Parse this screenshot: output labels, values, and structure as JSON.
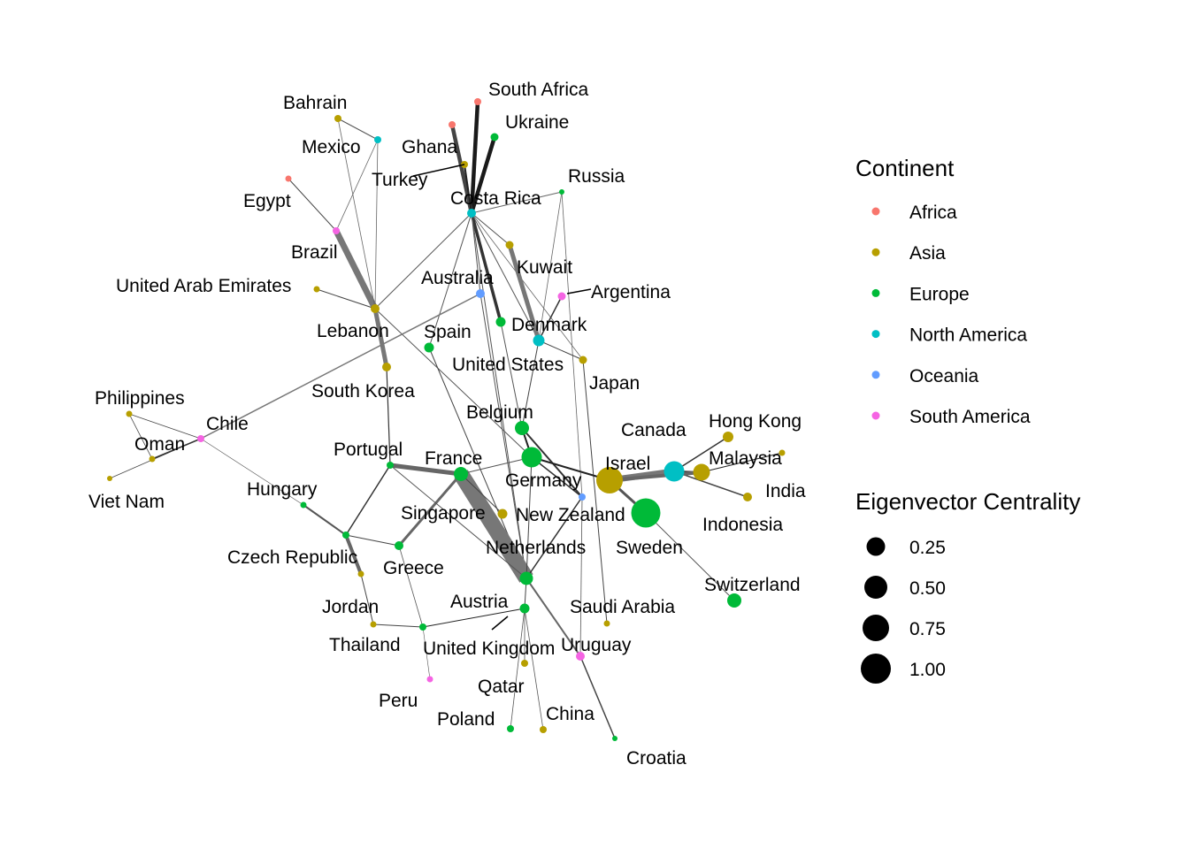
{
  "continents": [
    {
      "key": "africa",
      "label": "Africa",
      "color": "#F8766D"
    },
    {
      "key": "asia",
      "label": "Asia",
      "color": "#B79F00"
    },
    {
      "key": "europe",
      "label": "Europe",
      "color": "#00BA38"
    },
    {
      "key": "north_america",
      "label": "North America",
      "color": "#00BFC4"
    },
    {
      "key": "oceania",
      "label": "Oceania",
      "color": "#619CFF"
    },
    {
      "key": "south_america",
      "label": "South America",
      "color": "#F564E3"
    }
  ],
  "legend": {
    "continent_title": "Continent",
    "size_title": "Eigenvector Centrality",
    "size_values": [
      "0.25",
      "0.50",
      "0.75",
      "1.00"
    ]
  },
  "nodes": [
    {
      "id": "South Africa",
      "label": "South Africa",
      "continent": "africa"
    },
    {
      "id": "Ghana",
      "label": "Ghana",
      "continent": "africa"
    },
    {
      "id": "Egypt",
      "label": "Egypt",
      "continent": "africa"
    },
    {
      "id": "Ukraine",
      "label": "Ukraine",
      "continent": "europe"
    },
    {
      "id": "Bahrain",
      "label": "Bahrain",
      "continent": "asia"
    },
    {
      "id": "Mexico",
      "label": "Mexico",
      "continent": "north_america"
    },
    {
      "id": "Turkey",
      "label": "Turkey",
      "continent": "asia"
    },
    {
      "id": "Costa Rica",
      "label": "Costa Rica",
      "continent": "north_america"
    },
    {
      "id": "Russia",
      "label": "Russia",
      "continent": "europe"
    },
    {
      "id": "Brazil",
      "label": "Brazil",
      "continent": "south_america"
    },
    {
      "id": "Kuwait",
      "label": "Kuwait",
      "continent": "asia"
    },
    {
      "id": "United Arab Emirates",
      "label": "United Arab Emirates",
      "continent": "asia"
    },
    {
      "id": "Australia",
      "label": "Australia",
      "continent": "oceania"
    },
    {
      "id": "Argentina",
      "label": "Argentina",
      "continent": "south_america"
    },
    {
      "id": "Lebanon",
      "label": "Lebanon",
      "continent": "asia"
    },
    {
      "id": "Denmark",
      "label": "Denmark",
      "continent": "europe"
    },
    {
      "id": "Spain",
      "label": "Spain",
      "continent": "europe"
    },
    {
      "id": "United States",
      "label": "United States",
      "continent": "north_america"
    },
    {
      "id": "Japan",
      "label": "Japan",
      "continent": "asia"
    },
    {
      "id": "South Korea",
      "label": "South Korea",
      "continent": "asia"
    },
    {
      "id": "Philippines",
      "label": "Philippines",
      "continent": "asia"
    },
    {
      "id": "Chile",
      "label": "Chile",
      "continent": "south_america"
    },
    {
      "id": "Oman",
      "label": "Oman",
      "continent": "asia"
    },
    {
      "id": "Viet Nam",
      "label": "Viet Nam",
      "continent": "asia"
    },
    {
      "id": "Belgium",
      "label": "Belgium",
      "continent": "europe"
    },
    {
      "id": "Hong Kong",
      "label": "Hong Kong",
      "continent": "asia"
    },
    {
      "id": "Canada",
      "label": "Canada",
      "continent": "north_america"
    },
    {
      "id": "Portugal",
      "label": "Portugal",
      "continent": "europe"
    },
    {
      "id": "France",
      "label": "France",
      "continent": "europe"
    },
    {
      "id": "Israel",
      "label": "Israel",
      "continent": "asia"
    },
    {
      "id": "Malaysia",
      "label": "Malaysia",
      "continent": "asia"
    },
    {
      "id": "India",
      "label": "India",
      "continent": "asia"
    },
    {
      "id": "Germany",
      "label": "Germany",
      "continent": "europe"
    },
    {
      "id": "Hungary",
      "label": "Hungary",
      "continent": "europe"
    },
    {
      "id": "Singapore",
      "label": "Singapore",
      "continent": "asia"
    },
    {
      "id": "New Zealand",
      "label": "New Zealand",
      "continent": "oceania"
    },
    {
      "id": "Sweden",
      "label": "Sweden",
      "continent": "europe"
    },
    {
      "id": "Indonesia",
      "label": "Indonesia",
      "continent": "asia"
    },
    {
      "id": "Czech Republic",
      "label": "Czech Republic",
      "continent": "europe"
    },
    {
      "id": "Greece",
      "label": "Greece",
      "continent": "europe"
    },
    {
      "id": "Netherlands",
      "label": "Netherlands",
      "continent": "europe"
    },
    {
      "id": "Switzerland",
      "label": "Switzerland",
      "continent": "europe"
    },
    {
      "id": "Jordan",
      "label": "Jordan",
      "continent": "asia"
    },
    {
      "id": "Austria",
      "label": "Austria",
      "continent": "europe"
    },
    {
      "id": "Saudi Arabia",
      "label": "Saudi Arabia",
      "continent": "asia"
    },
    {
      "id": "Thailand",
      "label": "Thailand",
      "continent": "asia"
    },
    {
      "id": "United Kingdom",
      "label": "United Kingdom",
      "continent": "europe"
    },
    {
      "id": "Uruguay",
      "label": "Uruguay",
      "continent": "south_america"
    },
    {
      "id": "Peru",
      "label": "Peru",
      "continent": "south_america"
    },
    {
      "id": "Qatar",
      "label": "Qatar",
      "continent": "asia"
    },
    {
      "id": "Poland",
      "label": "Poland",
      "continent": "europe"
    },
    {
      "id": "China",
      "label": "China",
      "continent": "asia"
    },
    {
      "id": "Croatia",
      "label": "Croatia",
      "continent": "europe"
    }
  ]
}
